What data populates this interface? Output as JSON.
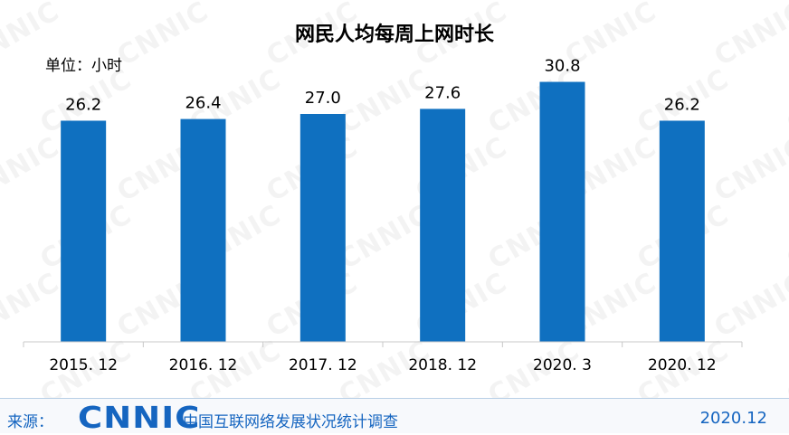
{
  "title": "网民人均每周上网时长",
  "unit_label": "单位：小时",
  "watermark_text": "CNNIC",
  "footer": {
    "source_label": "来源：",
    "logo_text": "CNNIC",
    "survey_name": "中国互联网络发展状况统计调查",
    "date": "2020.12"
  },
  "colors": {
    "bar": "#0f70c0",
    "accent": "#1565c0"
  },
  "chart_data": {
    "type": "bar",
    "title": "网民人均每周上网时长",
    "xlabel": "",
    "ylabel": "单位：小时",
    "categories": [
      "2015. 12",
      "2016. 12",
      "2017. 12",
      "2018. 12",
      "2020. 3",
      "2020. 12"
    ],
    "values": [
      26.2,
      26.4,
      27.0,
      27.6,
      30.8,
      26.2
    ],
    "value_labels": [
      "26.2",
      "26.4",
      "27.0",
      "27.6",
      "30.8",
      "26.2"
    ],
    "ylim": [
      0,
      33
    ],
    "grid": false,
    "legend": "none"
  }
}
